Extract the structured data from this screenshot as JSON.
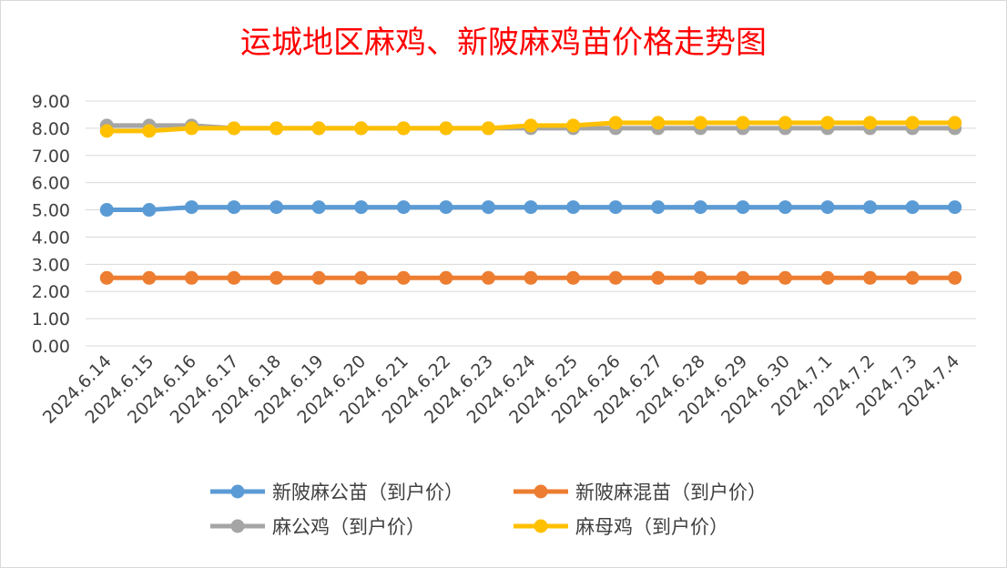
{
  "chart_data": {
    "type": "line",
    "title": "运城地区麻鸡、新陂麻鸡苗价格走势图",
    "xlabel": "",
    "ylabel": "",
    "ylim": [
      0,
      9
    ],
    "yticks": [
      "0.00",
      "1.00",
      "2.00",
      "3.00",
      "4.00",
      "5.00",
      "6.00",
      "7.00",
      "8.00",
      "9.00"
    ],
    "grid": true,
    "legend_position": "bottom",
    "categories": [
      "2024.6.14",
      "2024.6.15",
      "2024.6.16",
      "2024.6.17",
      "2024.6.18",
      "2024.6.19",
      "2024.6.20",
      "2024.6.21",
      "2024.6.22",
      "2024.6.23",
      "2024.6.24",
      "2024.6.25",
      "2024.6.26",
      "2024.6.27",
      "2024.6.28",
      "2024.6.29",
      "2024.6.30",
      "2024.7.1",
      "2024.7.2",
      "2024.7.3",
      "2024.7.4"
    ],
    "series": [
      {
        "name": "新陂麻公苗（到户价）",
        "color": "#5b9bd5",
        "values": [
          5.0,
          5.0,
          5.1,
          5.1,
          5.1,
          5.1,
          5.1,
          5.1,
          5.1,
          5.1,
          5.1,
          5.1,
          5.1,
          5.1,
          5.1,
          5.1,
          5.1,
          5.1,
          5.1,
          5.1,
          5.1
        ]
      },
      {
        "name": "新陂麻混苗（到户价）",
        "color": "#ed7d31",
        "values": [
          2.5,
          2.5,
          2.5,
          2.5,
          2.5,
          2.5,
          2.5,
          2.5,
          2.5,
          2.5,
          2.5,
          2.5,
          2.5,
          2.5,
          2.5,
          2.5,
          2.5,
          2.5,
          2.5,
          2.5,
          2.5
        ]
      },
      {
        "name": "麻公鸡（到户价）",
        "color": "#a5a5a5",
        "values": [
          8.1,
          8.1,
          8.1,
          8.0,
          8.0,
          8.0,
          8.0,
          8.0,
          8.0,
          8.0,
          8.0,
          8.0,
          8.0,
          8.0,
          8.0,
          8.0,
          8.0,
          8.0,
          8.0,
          8.0,
          8.0
        ]
      },
      {
        "name": "麻母鸡（到户价）",
        "color": "#ffc000",
        "values": [
          7.9,
          7.9,
          8.0,
          8.0,
          8.0,
          8.0,
          8.0,
          8.0,
          8.0,
          8.0,
          8.1,
          8.1,
          8.2,
          8.2,
          8.2,
          8.2,
          8.2,
          8.2,
          8.2,
          8.2,
          8.2
        ]
      }
    ]
  }
}
